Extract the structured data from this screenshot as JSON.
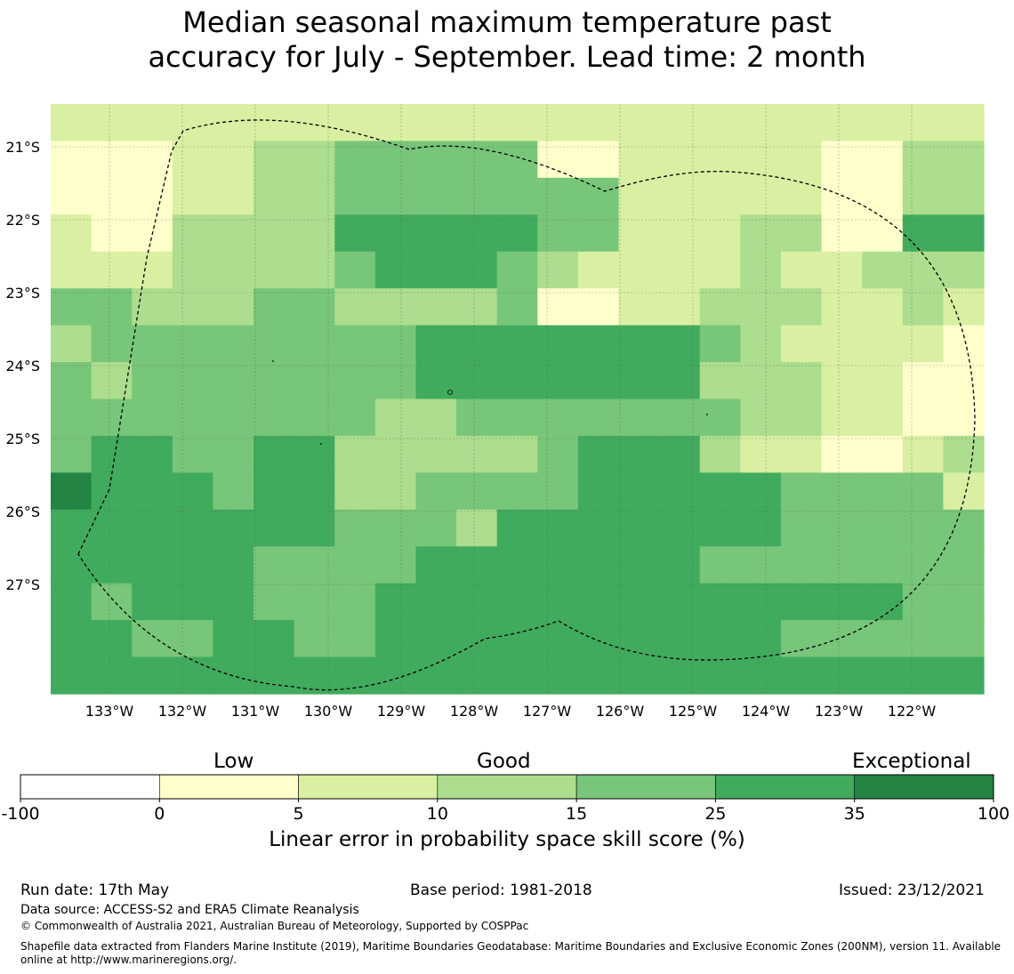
{
  "title": {
    "line1": "Median seasonal maximum temperature past",
    "line2": "accuracy for July - September. Lead time: 2 month"
  },
  "map": {
    "lat_labels": [
      "21°S",
      "22°S",
      "23°S",
      "24°S",
      "25°S",
      "26°S",
      "27°S"
    ],
    "lon_labels": [
      "133°W",
      "132°W",
      "131°W",
      "130°W",
      "129°W",
      "128°W",
      "127°W",
      "126°W",
      "125°W",
      "124°W",
      "123°W",
      "122°W"
    ],
    "grid_rows": [
      "22222222222222222222222",
      "11122334444411222221133",
      "11122334444444222221133",
      "21133335555544222331155",
      "22233334555432222322333",
      "44333443333411223332232",
      "34444444455655554322221",
      "43444444455655553332211",
      "44444444334444444332211",
      "45544563333345553221123",
      "75554563344446665544442",
      "56666554443566666644444",
      "55555444456666554444444",
      "54555444556666666665544",
      "55445544556666666644444",
      "55555666666666666666666"
    ],
    "legend_colors": {
      "0": "#ffffff",
      "1": "#ffffcc",
      "2": "#d9f0a3",
      "3": "#addd8e",
      "4": "#78c679",
      "5": "#41ab5d",
      "6": "#41ab5d",
      "7": "#238443"
    }
  },
  "colorbar": {
    "categories": [
      "Low",
      "Good",
      "Exceptional"
    ],
    "ticks": [
      "-100",
      "0",
      "5",
      "10",
      "15",
      "25",
      "35",
      "100"
    ],
    "colors": [
      "#ffffff",
      "#ffffcc",
      "#d9f0a3",
      "#addd8e",
      "#78c679",
      "#41ab5d",
      "#238443"
    ],
    "label": "Linear error in probability space skill score (%)"
  },
  "footer": {
    "run_date": "Run date: 17th May",
    "base_period": "Base period: 1981-2018",
    "issued": "Issued: 23/12/2021",
    "data_source": "Data source: ACCESS-S2 and ERA5 Climate Reanalysis",
    "copyright": "© Commonwealth of Australia 2021, Australian Bureau of Meteorology, Supported by COSPPac",
    "shapefile_line1": "Shapefile data extracted from Flanders Marine Institute (2019), Maritime Boundaries Geodatabase: Maritime Boundaries and Exclusive Economic Zones (200NM), version 11. Available",
    "shapefile_line2": "online at http://www.marineregions.org/."
  }
}
